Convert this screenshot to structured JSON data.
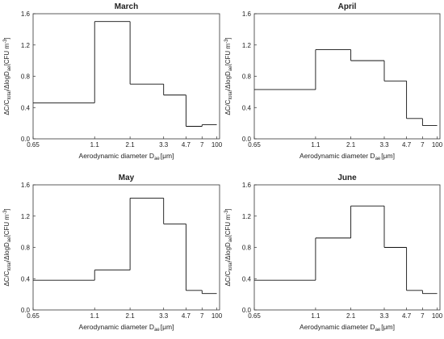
{
  "chart_data": [
    {
      "type": "line",
      "title": "March",
      "xlabel": "Aerodynamic diameter D",
      "xlabel_sub": "ae",
      "xlabel_unit": "[μm]",
      "ylabel_parts": [
        "ΔC/C",
        "total",
        "/ΔlogD",
        "ae",
        "[CFU m",
        "-3",
        "]"
      ],
      "x_ticks": [
        "0.65",
        "1.1",
        "2.1",
        "3.3",
        "4.7",
        "7",
        "100"
      ],
      "y_ticks": [
        "0.0",
        "0.4",
        "0.8",
        "1.2",
        "1.6"
      ],
      "ylim": [
        0,
        1.6
      ],
      "bins": [
        {
          "lo": "0.65",
          "hi": "1.1",
          "value": 0.46
        },
        {
          "lo": "1.1",
          "hi": "2.1",
          "value": 1.5
        },
        {
          "lo": "2.1",
          "hi": "3.3",
          "value": 0.7
        },
        {
          "lo": "3.3",
          "hi": "4.7",
          "value": 0.56
        },
        {
          "lo": "4.7",
          "hi": "7",
          "value": 0.16
        },
        {
          "lo": "7",
          "hi": "100",
          "value": 0.18
        }
      ]
    },
    {
      "type": "line",
      "title": "April",
      "xlabel": "Aerodynamic diameter D",
      "xlabel_sub": "ae",
      "xlabel_unit": "[μm]",
      "ylabel_parts": [
        "ΔC/C",
        "total",
        "/ΔlogD",
        "ae",
        "[CFU m",
        "-3",
        "]"
      ],
      "x_ticks": [
        "0.65",
        "1.1",
        "2.1",
        "3.3",
        "4.7",
        "7",
        "100"
      ],
      "y_ticks": [
        "0.0",
        "0.4",
        "0.8",
        "1.2",
        "1.6"
      ],
      "ylim": [
        0,
        1.6
      ],
      "bins": [
        {
          "lo": "0.65",
          "hi": "1.1",
          "value": 0.63
        },
        {
          "lo": "1.1",
          "hi": "2.1",
          "value": 1.14
        },
        {
          "lo": "2.1",
          "hi": "3.3",
          "value": 1.0
        },
        {
          "lo": "3.3",
          "hi": "4.7",
          "value": 0.74
        },
        {
          "lo": "4.7",
          "hi": "7",
          "value": 0.26
        },
        {
          "lo": "7",
          "hi": "100",
          "value": 0.17
        }
      ]
    },
    {
      "type": "line",
      "title": "May",
      "xlabel": "Aerodynamic diameter D",
      "xlabel_sub": "ae",
      "xlabel_unit": "[μm]",
      "ylabel_parts": [
        "ΔC/C",
        "total",
        "/ΔlogD",
        "ae",
        "[CFU m",
        "-3",
        "]"
      ],
      "x_ticks": [
        "0.65",
        "1.1",
        "2.1",
        "3.3",
        "4.7",
        "7",
        "100"
      ],
      "y_ticks": [
        "0.0",
        "0.4",
        "0.8",
        "1.2",
        "1.6"
      ],
      "ylim": [
        0,
        1.6
      ],
      "bins": [
        {
          "lo": "0.65",
          "hi": "1.1",
          "value": 0.38
        },
        {
          "lo": "1.1",
          "hi": "2.1",
          "value": 0.51
        },
        {
          "lo": "2.1",
          "hi": "3.3",
          "value": 1.43
        },
        {
          "lo": "3.3",
          "hi": "4.7",
          "value": 1.1
        },
        {
          "lo": "4.7",
          "hi": "7",
          "value": 0.25
        },
        {
          "lo": "7",
          "hi": "100",
          "value": 0.21
        }
      ]
    },
    {
      "type": "line",
      "title": "June",
      "xlabel": "Aerodynamic diameter D",
      "xlabel_sub": "ae",
      "xlabel_unit": "[μm]",
      "ylabel_parts": [
        "ΔC/C",
        "total",
        "/ΔlogD",
        "ae",
        "[CFU m",
        "-3",
        "]"
      ],
      "x_ticks": [
        "0.65",
        "1.1",
        "2.1",
        "3.3",
        "4.7",
        "7",
        "100"
      ],
      "y_ticks": [
        "0.0",
        "0.4",
        "0.8",
        "1.2",
        "1.6"
      ],
      "ylim": [
        0,
        1.6
      ],
      "bins": [
        {
          "lo": "0.65",
          "hi": "1.1",
          "value": 0.38
        },
        {
          "lo": "1.1",
          "hi": "2.1",
          "value": 0.92
        },
        {
          "lo": "2.1",
          "hi": "3.3",
          "value": 1.33
        },
        {
          "lo": "3.3",
          "hi": "4.7",
          "value": 0.8
        },
        {
          "lo": "4.7",
          "hi": "7",
          "value": 0.25
        },
        {
          "lo": "7",
          "hi": "100",
          "value": 0.21
        }
      ]
    }
  ]
}
